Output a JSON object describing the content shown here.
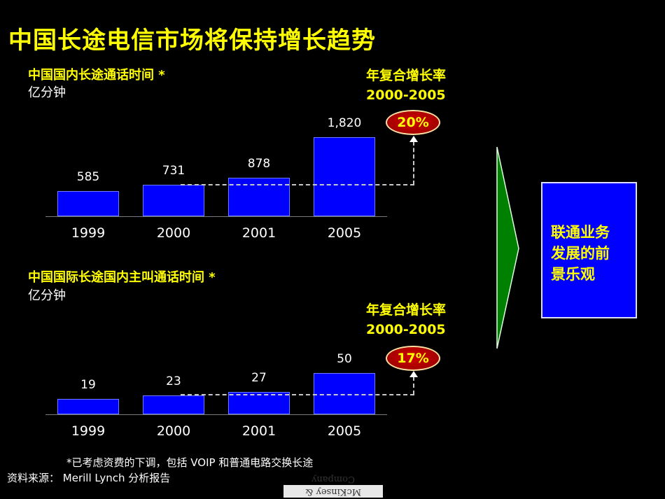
{
  "title": "中国长途电信市场将保持增长趋势",
  "top_chart": {
    "heading": "中国国内长途通话时间 *",
    "unit": "亿分钟",
    "cagr_label_1": "年复合增长率",
    "cagr_label_2": "2000-2005",
    "cagr_value": "20%"
  },
  "bottom_chart": {
    "heading": "中国国际长途国内主叫通话时间 *",
    "unit": "亿分钟",
    "cagr_label_1": "年复合增长率",
    "cagr_label_2": "2000-2005",
    "cagr_value": "17%"
  },
  "chart_data": [
    {
      "type": "bar",
      "title": "中国国内长途通话时间 *",
      "ylabel": "亿分钟",
      "categories": [
        "1999",
        "2000",
        "2001",
        "2005"
      ],
      "values": [
        585,
        731,
        878,
        1820
      ],
      "value_labels": [
        "585",
        "731",
        "878",
        "1,820"
      ],
      "annotation": "年复合增长率 2000-2005: 20%"
    },
    {
      "type": "bar",
      "title": "中国国际长途国内主叫通话时间 *",
      "ylabel": "亿分钟",
      "categories": [
        "1999",
        "2000",
        "2001",
        "2005"
      ],
      "values": [
        19,
        23,
        27,
        50
      ],
      "value_labels": [
        "19",
        "23",
        "27",
        "50"
      ],
      "annotation": "年复合增长率 2000-2005: 17%"
    }
  ],
  "conclusion": {
    "line1": "联通业务",
    "line2": "发展的前",
    "line3": "景乐观"
  },
  "footnote": "*已考虑资费的下调，包括 VOIP 和普通电路交换长途",
  "source": "资料来源： Merill Lynch  分析报告",
  "logo_text": "McKinsey & Company",
  "colors": {
    "accent": "#ffff00",
    "bar": "#0000ff",
    "badge": "#b00000",
    "arrow": "#008000",
    "background": "#000000"
  }
}
